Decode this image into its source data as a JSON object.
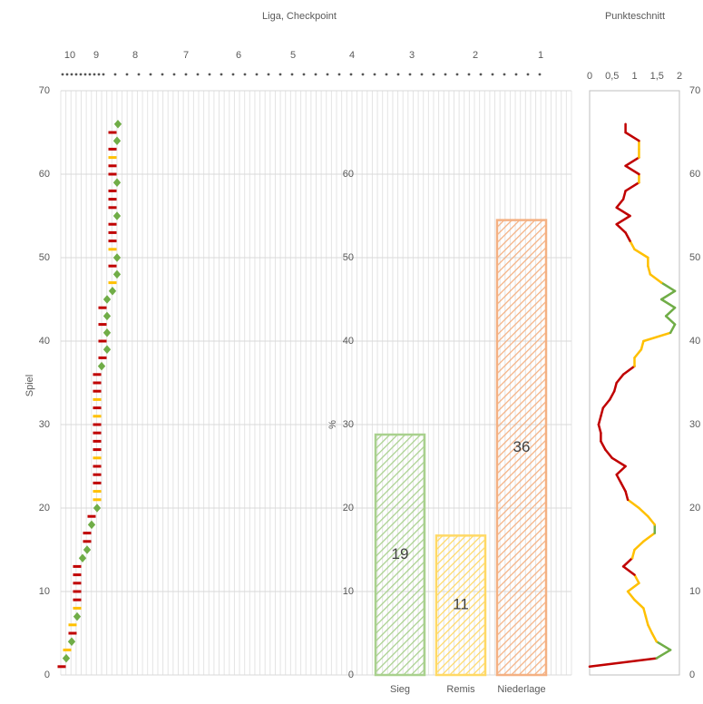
{
  "chart_data": [
    {
      "type": "scatter",
      "title": "Liga, Checkpoint",
      "y_label": "Spiel",
      "xlim": [
        0,
        563
      ],
      "xticks": [
        {
          "value": 10,
          "label": "10"
        },
        {
          "value": 39,
          "label": "9"
        },
        {
          "value": 82,
          "label": "8"
        },
        {
          "value": 138,
          "label": "7"
        },
        {
          "value": 196,
          "label": "6"
        },
        {
          "value": 256,
          "label": "5"
        },
        {
          "value": 321,
          "label": "4"
        },
        {
          "value": 387,
          "label": "3"
        },
        {
          "value": 457,
          "label": "2"
        },
        {
          "value": 529,
          "label": "1"
        }
      ],
      "ylim": [
        0,
        70
      ],
      "yticks": [
        0,
        10,
        20,
        30,
        40,
        50,
        60,
        70
      ],
      "grid": true,
      "series": [
        {
          "color": "#70ad47",
          "marker": "diamond",
          "x": [
            6,
            12,
            18,
            24,
            29,
            34,
            40,
            45,
            51,
            51,
            51,
            51,
            57,
            62,
            62,
            62,
            62,
            62,
            63
          ],
          "y": [
            2,
            4,
            7,
            14,
            15,
            18,
            20,
            37,
            39,
            41,
            43,
            45,
            46,
            48,
            50,
            55,
            59,
            64,
            66
          ]
        },
        {
          "color": "#ffc000",
          "marker": "dash",
          "x": [
            7,
            13,
            18,
            40,
            40,
            40,
            40,
            40,
            57,
            57,
            57
          ],
          "y": [
            3,
            6,
            8,
            21,
            22,
            26,
            31,
            33,
            47,
            51,
            62
          ]
        },
        {
          "color": "#c00000",
          "marker": "dash",
          "x": [
            1,
            13,
            18,
            18,
            18,
            18,
            18,
            29,
            29,
            34,
            40,
            40,
            40,
            40,
            40,
            40,
            40,
            40,
            40,
            40,
            40,
            46,
            46,
            46,
            46,
            57,
            57,
            57,
            57,
            57,
            57,
            57,
            57,
            57,
            57,
            57
          ],
          "y": [
            1,
            5,
            9,
            10,
            11,
            12,
            13,
            16,
            17,
            19,
            23,
            24,
            25,
            27,
            28,
            29,
            30,
            32,
            34,
            35,
            36,
            38,
            40,
            42,
            44,
            49,
            52,
            53,
            54,
            56,
            57,
            58,
            60,
            61,
            63,
            65
          ]
        }
      ]
    },
    {
      "type": "bar",
      "y_label": "%",
      "categories": [
        "Sieg",
        "Remis",
        "Niederlage"
      ],
      "values": [
        28.8,
        16.7,
        54.5
      ],
      "counts": [
        19,
        11,
        36
      ],
      "colors": [
        "#a9d18e",
        "#ffd966",
        "#f4b183"
      ],
      "ylim": [
        0,
        70
      ],
      "yticks": [
        0,
        10,
        20,
        30,
        40,
        50,
        60
      ]
    },
    {
      "type": "line",
      "title": "Punkteschnitt",
      "xlim": [
        0,
        2
      ],
      "xticks": [
        0,
        {
          "value": 0.5,
          "label": "0,5"
        },
        1,
        {
          "value": 1.5,
          "label": "1,5"
        },
        2
      ],
      "ylim": [
        0,
        70
      ],
      "yticks": [
        0,
        10,
        20,
        30,
        40,
        50,
        60,
        70
      ],
      "y": [
        1,
        2,
        3,
        4,
        5,
        6,
        7,
        8,
        9,
        10,
        11,
        12,
        13,
        14,
        15,
        16,
        17,
        18,
        19,
        20,
        21,
        22,
        23,
        24,
        25,
        26,
        27,
        28,
        29,
        30,
        31,
        32,
        33,
        34,
        35,
        36,
        37,
        38,
        39,
        40,
        41,
        42,
        43,
        44,
        45,
        46,
        47,
        48,
        49,
        50,
        51,
        52,
        53,
        54,
        55,
        56,
        57,
        58,
        59,
        60,
        61,
        62,
        63,
        64,
        65,
        66
      ],
      "values": [
        0,
        1.49,
        1.8,
        1.49,
        1.39,
        1.3,
        1.25,
        1.2,
        1.0,
        0.85,
        1.1,
        1.0,
        0.75,
        0.95,
        1.0,
        1.2,
        1.45,
        1.45,
        1.3,
        1.1,
        0.85,
        0.8,
        0.7,
        0.6,
        0.8,
        0.5,
        0.35,
        0.25,
        0.25,
        0.2,
        0.25,
        0.3,
        0.45,
        0.55,
        0.6,
        0.75,
        1.0,
        1.0,
        1.15,
        1.2,
        1.8,
        1.9,
        1.7,
        1.9,
        1.6,
        1.9,
        1.6,
        1.35,
        1.3,
        1.3,
        1.0,
        0.9,
        0.8,
        0.6,
        0.9,
        0.6,
        0.75,
        0.8,
        1.1,
        1.1,
        0.8,
        1.1,
        1.1,
        1.1,
        0.8,
        0.8
      ],
      "colors": [
        "#c00000",
        "#c00000",
        "#70ad47",
        "#70ad47",
        "#ffc000",
        "#ffc000",
        "#ffc000",
        "#ffc000",
        "#ffc000",
        "#ffc000",
        "#ffc000",
        "#ffc000",
        "#c00000",
        "#c00000",
        "#ffc000",
        "#ffc000",
        "#ffc000",
        "#70ad47",
        "#ffc000",
        "#ffc000",
        "#ffc000",
        "#c00000",
        "#c00000",
        "#c00000",
        "#c00000",
        "#c00000",
        "#c00000",
        "#c00000",
        "#c00000",
        "#c00000",
        "#c00000",
        "#c00000",
        "#c00000",
        "#c00000",
        "#c00000",
        "#c00000",
        "#c00000",
        "#ffc000",
        "#ffc000",
        "#ffc000",
        "#ffc000",
        "#70ad47",
        "#70ad47",
        "#70ad47",
        "#70ad47",
        "#70ad47",
        "#70ad47",
        "#ffc000",
        "#ffc000",
        "#ffc000",
        "#ffc000",
        "#ffc000",
        "#c00000",
        "#c00000",
        "#c00000",
        "#c00000",
        "#c00000",
        "#c00000",
        "#c00000",
        "#ffc000",
        "#c00000",
        "#c00000",
        "#ffc000",
        "#ffc000",
        "#c00000",
        "#c00000"
      ]
    }
  ]
}
